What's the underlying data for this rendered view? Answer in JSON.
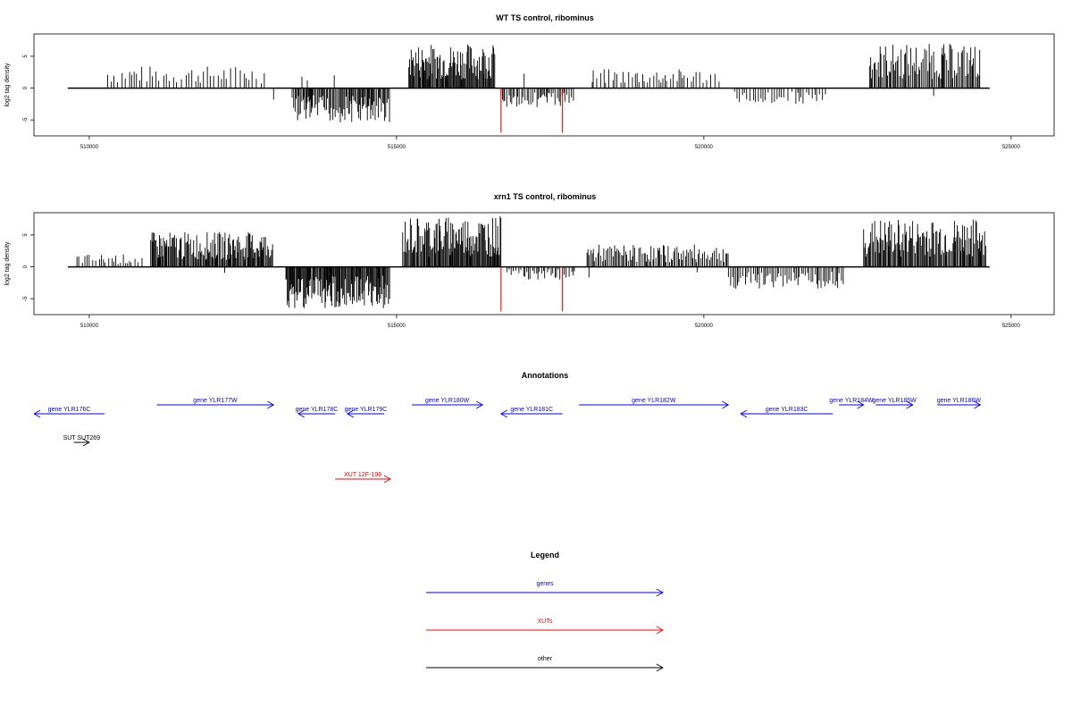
{
  "plots": [
    {
      "title": "WT TS control, ribominus",
      "ylabel": "log2 tag density",
      "ylim": [
        -7.5,
        8.5
      ],
      "xlim": [
        509100,
        525700
      ],
      "yticks": [
        "5",
        "0",
        "-5"
      ],
      "xticks": [
        "510000",
        "515000",
        "520000",
        "525000"
      ],
      "red_spikes": [
        {
          "x": 516700,
          "y": -7
        },
        {
          "x": 517700,
          "y": -7
        }
      ]
    },
    {
      "title": "xrn1 TS control, ribominus",
      "ylabel": "log2 tag density",
      "ylim": [
        -7.5,
        8.5
      ],
      "xlim": [
        509100,
        525700
      ],
      "yticks": [
        "5",
        "0",
        "-5"
      ],
      "xticks": [
        "510000",
        "515000",
        "520000",
        "525000"
      ],
      "red_spikes": [
        {
          "x": 516700,
          "y": -7
        },
        {
          "x": 517700,
          "y": -7
        }
      ]
    }
  ],
  "annotations": {
    "title": "Annotations",
    "features": [
      {
        "label": "gene YLR176C",
        "start": 509100,
        "end": 510250,
        "strand": "-",
        "type": "gene",
        "row": 0
      },
      {
        "label": "gene YLR177W",
        "start": 511100,
        "end": 513000,
        "strand": "+",
        "type": "gene",
        "row": 1
      },
      {
        "label": "gene YLR178C",
        "start": 513400,
        "end": 514000,
        "strand": "-",
        "type": "gene",
        "row": 0
      },
      {
        "label": "gene YLR179C",
        "start": 514200,
        "end": 514800,
        "strand": "-",
        "type": "gene",
        "row": 0
      },
      {
        "label": "gene YLR180W",
        "start": 515250,
        "end": 516400,
        "strand": "+",
        "type": "gene",
        "row": 1
      },
      {
        "label": "gene YLR181C",
        "start": 516700,
        "end": 517700,
        "strand": "-",
        "type": "gene",
        "row": 0
      },
      {
        "label": "gene YLR182W",
        "start": 517970,
        "end": 520400,
        "strand": "+",
        "type": "gene",
        "row": 1
      },
      {
        "label": "gene YLR183C",
        "start": 520600,
        "end": 522100,
        "strand": "-",
        "type": "gene",
        "row": 0
      },
      {
        "label": "gene YLR184W",
        "start": 522200,
        "end": 522600,
        "strand": "+",
        "type": "gene",
        "row": 1
      },
      {
        "label": "gene YLR185W",
        "start": 522800,
        "end": 523400,
        "strand": "+",
        "type": "gene",
        "row": 1
      },
      {
        "label": "gene YLR186W",
        "start": 523800,
        "end": 524500,
        "strand": "+",
        "type": "gene",
        "row": 1
      },
      {
        "label": "SUT SUT269",
        "start": 509750,
        "end": 510000,
        "strand": "+",
        "type": "other",
        "row": 2
      },
      {
        "label": "XUT 12F-198",
        "start": 514000,
        "end": 514900,
        "strand": "+",
        "type": "xut",
        "row": 3
      }
    ]
  },
  "legend": {
    "title": "Legend",
    "items": [
      {
        "label": "genes",
        "color": "#0000ff"
      },
      {
        "label": "XUTs",
        "color": "#ff0000"
      },
      {
        "label": "other",
        "color": "#000000"
      }
    ]
  },
  "colors": {
    "gene": "#0000ff",
    "xut": "#ff0000",
    "other": "#000000",
    "spike": "#ff0000",
    "bars": "#000000"
  },
  "chart_data": [
    {
      "type": "bar",
      "title": "WT TS control, ribominus",
      "ylabel": "log2 tag density",
      "xlim": [
        509100,
        525700
      ],
      "ylim": [
        -7.5,
        8.5
      ],
      "grid": false,
      "segments": [
        {
          "start": 510300,
          "end": 512900,
          "amp": 3.5,
          "sign": 1,
          "density": 0.25
        },
        {
          "start": 513300,
          "end": 514900,
          "amp": 5.5,
          "sign": -1,
          "density": 0.8
        },
        {
          "start": 515200,
          "end": 516600,
          "amp": 7,
          "sign": 1,
          "density": 1.0
        },
        {
          "start": 516700,
          "end": 517900,
          "amp": 3,
          "sign": -1,
          "density": 0.5
        },
        {
          "start": 518200,
          "end": 520300,
          "amp": 3,
          "sign": 1,
          "density": 0.3
        },
        {
          "start": 520500,
          "end": 522000,
          "amp": 2.5,
          "sign": -1,
          "density": 0.3
        },
        {
          "start": 522700,
          "end": 524500,
          "amp": 7,
          "sign": 1,
          "density": 0.7
        }
      ],
      "spikes": [
        {
          "x": 516700,
          "y": -7
        },
        {
          "x": 517700,
          "y": -7
        }
      ]
    },
    {
      "type": "bar",
      "title": "xrn1 TS control, ribominus",
      "ylabel": "log2 tag density",
      "xlim": [
        509100,
        525700
      ],
      "ylim": [
        -7.5,
        8.5
      ],
      "grid": false,
      "segments": [
        {
          "start": 509800,
          "end": 510900,
          "amp": 2,
          "sign": 1,
          "density": 0.3
        },
        {
          "start": 511000,
          "end": 513000,
          "amp": 5.5,
          "sign": 1,
          "density": 0.9
        },
        {
          "start": 513200,
          "end": 514900,
          "amp": 6.5,
          "sign": -1,
          "density": 1.0
        },
        {
          "start": 515100,
          "end": 516700,
          "amp": 8,
          "sign": 1,
          "density": 1.0
        },
        {
          "start": 516800,
          "end": 517900,
          "amp": 2,
          "sign": -1,
          "density": 0.4
        },
        {
          "start": 518100,
          "end": 520400,
          "amp": 3.5,
          "sign": 1,
          "density": 0.6
        },
        {
          "start": 520400,
          "end": 522300,
          "amp": 3.5,
          "sign": -1,
          "density": 0.5
        },
        {
          "start": 522600,
          "end": 524600,
          "amp": 7.5,
          "sign": 1,
          "density": 0.9
        }
      ],
      "spikes": [
        {
          "x": 516700,
          "y": -7
        },
        {
          "x": 517700,
          "y": -7
        }
      ]
    }
  ]
}
